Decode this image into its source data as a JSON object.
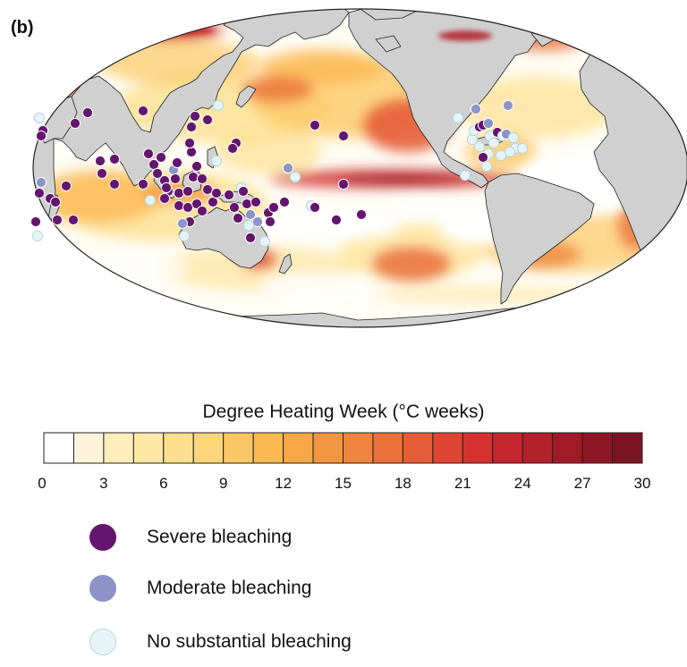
{
  "panel_label": "(b)",
  "colorbar": {
    "title": "Degree Heating Week (°C weeks)",
    "ticks": [
      "0",
      "3",
      "6",
      "9",
      "12",
      "15",
      "18",
      "21",
      "24",
      "27",
      "30"
    ],
    "colors": [
      "#ffffff",
      "#fff4da",
      "#ffeebb",
      "#fee8a6",
      "#fde08e",
      "#fdd57a",
      "#fcc865",
      "#fbb954",
      "#f7a746",
      "#f39641",
      "#ef853e",
      "#ea7139",
      "#e55d36",
      "#de4533",
      "#d4312f",
      "#c6262e",
      "#b22029",
      "#a01b27",
      "#8d1724",
      "#7a1420"
    ]
  },
  "legend": [
    {
      "label": "Severe bleaching",
      "color": "#64166e",
      "stroke": "#64166e"
    },
    {
      "label": "Moderate bleaching",
      "color": "#8c93c6",
      "stroke": "#8c93c6"
    },
    {
      "label": "No substantial bleaching",
      "color": "#e7f4f7",
      "stroke": "#b6d6e2"
    }
  ],
  "colors": {
    "land": "#d0d0d0",
    "ocean_base": "#fffdf5",
    "coastline": "#222222"
  }
}
